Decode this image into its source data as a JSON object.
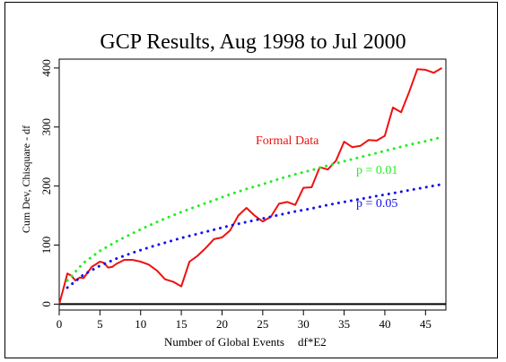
{
  "chart_data": {
    "type": "line",
    "title": "GCP Results, Aug 1998 to Jul 2000",
    "xlabel": "Number of Global Events",
    "xlabel_unit": "df*E2",
    "ylabel": "Cum Dev, Chisquare - df",
    "xlim": [
      0,
      47.5
    ],
    "ylim": [
      -10,
      415
    ],
    "xticks": [
      0,
      5,
      10,
      15,
      20,
      25,
      30,
      35,
      40,
      45
    ],
    "yticks": [
      0,
      100,
      200,
      300,
      400
    ],
    "grid": false,
    "zero_line": true,
    "series": [
      {
        "name": "Formal Data",
        "color": "#ee1111",
        "style": "solid",
        "x": [
          0,
          0.5,
          1,
          1.5,
          2,
          2.5,
          3,
          4,
          5,
          5.5,
          6,
          6.5,
          7,
          8,
          9,
          10,
          11,
          12,
          13,
          14,
          15,
          16,
          17,
          18,
          19,
          20,
          21,
          22,
          23,
          24,
          25,
          26,
          27,
          28,
          29,
          30,
          31,
          32,
          33,
          34,
          35,
          36,
          37,
          38,
          39,
          40,
          41,
          42,
          43,
          44,
          45,
          46,
          47
        ],
        "y": [
          0,
          25,
          52,
          48,
          40,
          45,
          44,
          63,
          72,
          70,
          62,
          63,
          68,
          75,
          75,
          72,
          67,
          57,
          42,
          38,
          30,
          72,
          82,
          95,
          110,
          113,
          125,
          150,
          163,
          150,
          140,
          148,
          170,
          173,
          168,
          197,
          198,
          232,
          228,
          243,
          275,
          266,
          268,
          278,
          277,
          285,
          333,
          325,
          360,
          398,
          397,
          392,
          400
        ]
      },
      {
        "name": "p = 0.01",
        "color": "#22ee22",
        "style": "dotted",
        "x": [
          1,
          3,
          5,
          7,
          9,
          11,
          13,
          15,
          17,
          19,
          21,
          23,
          25,
          27,
          29,
          31,
          33,
          35,
          37,
          39,
          41,
          43,
          45,
          47
        ],
        "y": [
          40,
          70,
          90,
          106,
          120,
          133,
          145,
          156,
          166,
          176,
          186,
          195,
          203,
          212,
          220,
          227,
          235,
          242,
          249,
          256,
          263,
          270,
          276,
          283
        ]
      },
      {
        "name": "p = 0.05",
        "color": "#1111ee",
        "style": "dotted",
        "x": [
          1,
          3,
          5,
          7,
          9,
          11,
          13,
          15,
          17,
          19,
          21,
          23,
          25,
          27,
          29,
          31,
          33,
          35,
          37,
          39,
          41,
          43,
          45,
          47
        ],
        "y": [
          28,
          50,
          65,
          77,
          87,
          96,
          104,
          112,
          119,
          126,
          133,
          139,
          145,
          151,
          157,
          162,
          168,
          173,
          178,
          183,
          188,
          193,
          198,
          203
        ]
      }
    ],
    "annotations": [
      {
        "text": "Formal Data",
        "color": "#ee1111"
      },
      {
        "text": "p = 0.01",
        "color": "#22ee22"
      },
      {
        "text": "p = 0.05",
        "color": "#1111ee"
      }
    ]
  }
}
